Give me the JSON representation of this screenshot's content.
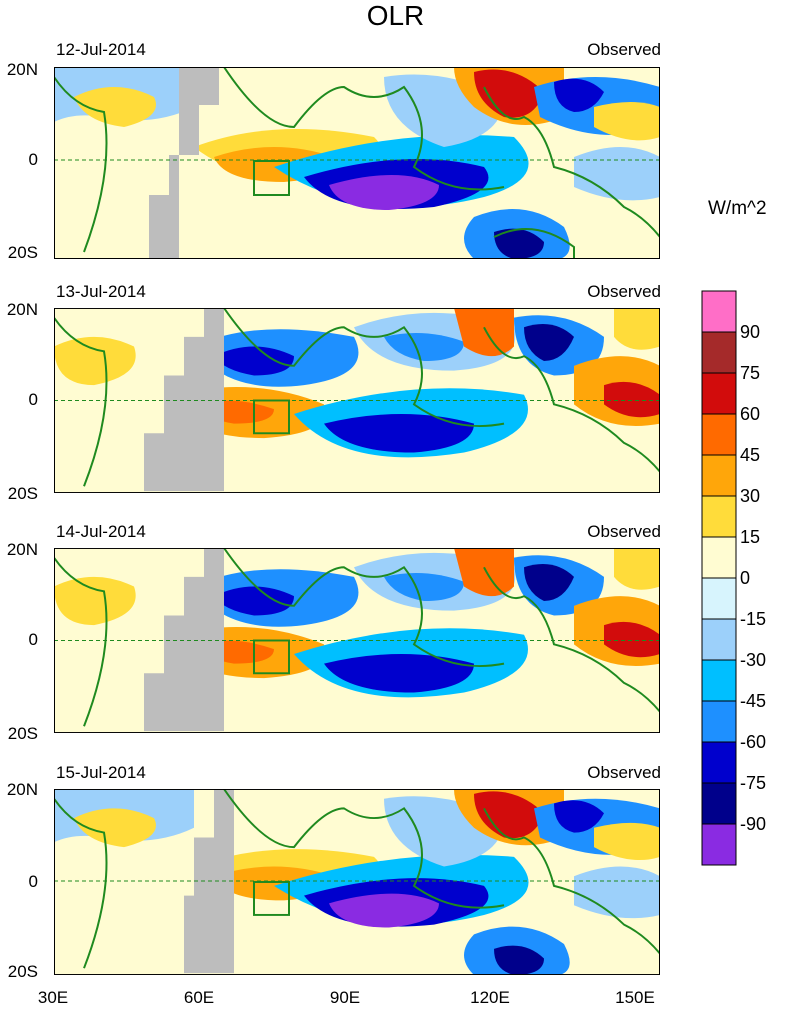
{
  "title": "OLR",
  "unit": "W/m^2",
  "axes": {
    "lat_top": "20N",
    "lat_equator": "0",
    "lat_bottom": "20S",
    "lon_labels": [
      "30E",
      "60E",
      "90E",
      "120E",
      "150E"
    ]
  },
  "panels": [
    {
      "date": "12-Jul-2014",
      "label": "Observed"
    },
    {
      "date": "13-Jul-2014",
      "label": "Observed"
    },
    {
      "date": "14-Jul-2014",
      "label": "Observed"
    },
    {
      "date": "15-Jul-2014",
      "label": "Observed"
    }
  ],
  "colorbar": {
    "colors": [
      "#8A2BE2",
      "#00008B",
      "#0000CD",
      "#1E90FF",
      "#00BFFF",
      "#9CD0FA",
      "#D7F4FD",
      "#FFFCD2",
      "#FFDC3A",
      "#FFA60A",
      "#FF6A00",
      "#D20C0C",
      "#A52A2A",
      "#FF6EC7"
    ],
    "labels": [
      "-90",
      "-75",
      "-60",
      "-45",
      "-30",
      "-15",
      "0",
      "15",
      "30",
      "45",
      "60",
      "75",
      "90"
    ]
  },
  "colors": {
    "coast": "#1f8a1f",
    "missing": "#bdbdbd",
    "equator": "#1f8a1f"
  }
}
